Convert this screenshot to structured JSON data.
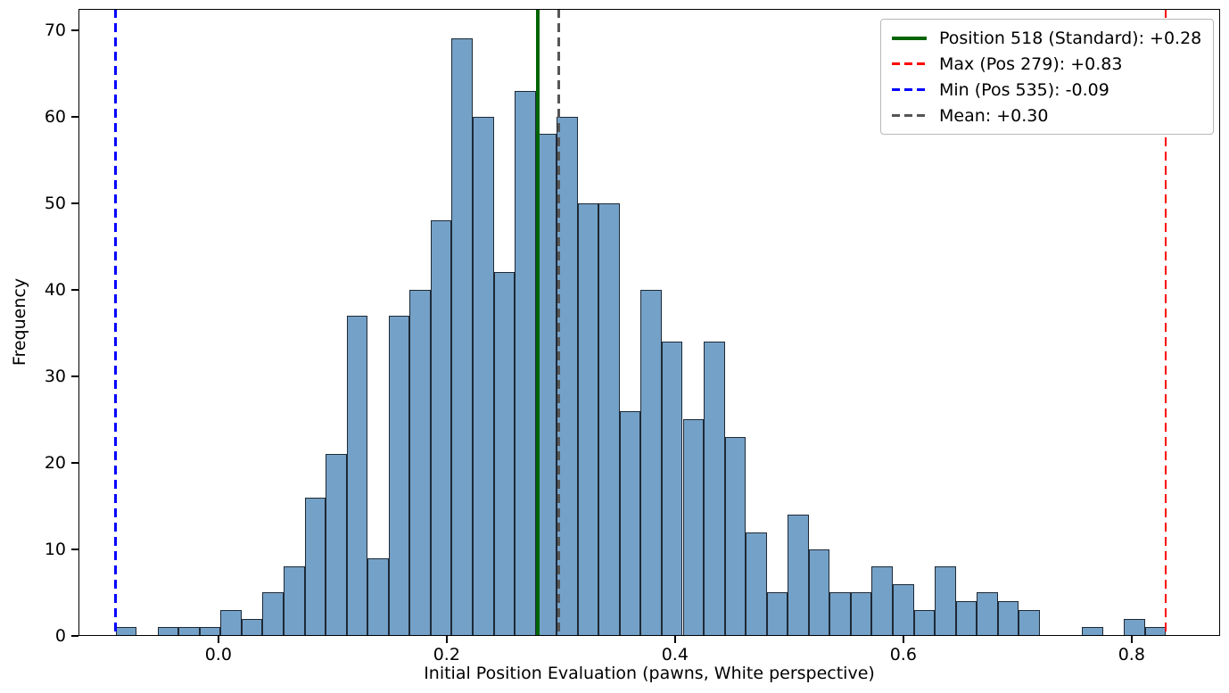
{
  "chart_data": {
    "type": "histogram",
    "title": "",
    "xlabel": "Initial Position Evaluation (pawns, White perspective)",
    "ylabel": "Frequency",
    "bins": {
      "start": -0.09,
      "width": 0.0184,
      "count": 50
    },
    "counts": [
      1,
      0,
      1,
      1,
      1,
      3,
      2,
      5,
      8,
      16,
      21,
      37,
      9,
      37,
      40,
      48,
      69,
      60,
      42,
      63,
      58,
      60,
      50,
      50,
      26,
      40,
      34,
      25,
      34,
      23,
      12,
      5,
      14,
      10,
      5,
      5,
      8,
      6,
      3,
      8,
      4,
      5,
      4,
      3,
      0,
      0,
      1,
      0,
      2,
      1
    ],
    "xlim": [
      -0.1225,
      0.8775
    ],
    "ylim": [
      0,
      72.45
    ],
    "x_tick_values": [
      0.0,
      0.2,
      0.4,
      0.6,
      0.8
    ],
    "x_tick_labels": [
      "0.0",
      "0.2",
      "0.4",
      "0.6",
      "0.8"
    ],
    "y_tick_values": [
      0,
      10,
      20,
      30,
      40,
      50,
      60,
      70
    ],
    "y_tick_labels": [
      "0",
      "10",
      "20",
      "30",
      "40",
      "50",
      "60",
      "70"
    ],
    "grid": false,
    "legend_position": "upper right",
    "bar_fill_color": "#74a1c7",
    "bar_edge_color": "#1e2936",
    "vlines": [
      {
        "name": "standard-position-line",
        "label": "Position 518 (Standard): +0.28",
        "value": 0.28,
        "color": "#006400",
        "style": "solid",
        "width": 4
      },
      {
        "name": "max-line",
        "label": "Max (Pos 279): +0.83",
        "value": 0.83,
        "color": "#ff0000",
        "style": "dashed",
        "width": 2.6
      },
      {
        "name": "min-line",
        "label": "Min (Pos 535): -0.09",
        "value": -0.09,
        "color": "#0000ff",
        "style": "dashed",
        "width": 2.6
      },
      {
        "name": "mean-line",
        "label": "Mean: +0.30",
        "value": 0.298,
        "color": "#555555",
        "style": "dashed",
        "width": 2.6
      }
    ]
  }
}
